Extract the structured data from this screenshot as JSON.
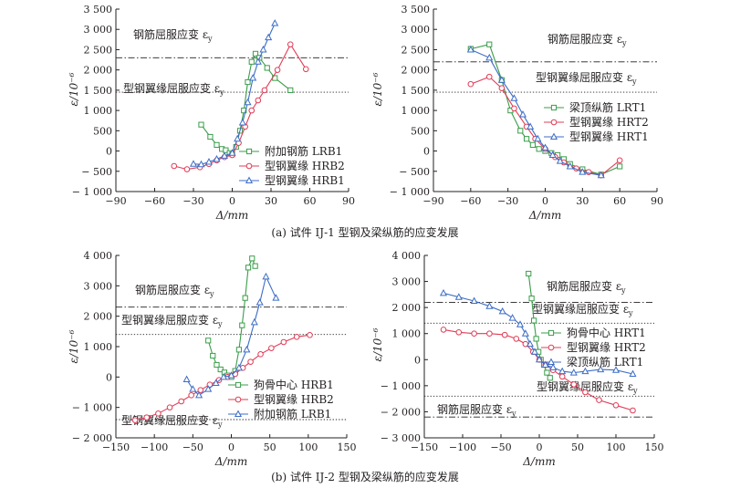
{
  "colors": {
    "green": "#3a9d4a",
    "red": "#e03c55",
    "blue": "#3c6dc6",
    "axis": "#231f20"
  },
  "captions": [
    "(a) 试件 IJ-1 型钢及梁纵筋的应变发展",
    "(b) 试件 IJ-2 型钢及梁纵筋的应变发展"
  ],
  "chart_data": [
    {
      "id": "a-left",
      "type": "line",
      "xlabel": "Δ/mm",
      "ylabel": "ε/10⁻⁶",
      "xlim": [
        -90,
        90
      ],
      "ylim": [
        -1000,
        3500
      ],
      "xticks": [
        -90,
        -60,
        -30,
        0,
        30,
        60,
        90
      ],
      "yticks": [
        -1000,
        -500,
        0,
        500,
        1000,
        1500,
        2000,
        2500,
        3000,
        3500
      ],
      "xtick_labels": [
        "−90",
        "−60",
        "−30",
        "0",
        "30",
        "60",
        "90"
      ],
      "ytick_labels": [
        "− 1 000",
        "− 500",
        "0",
        "500",
        "1 000",
        "1 500",
        "2 000",
        "2 500",
        "3 000",
        "3 500"
      ],
      "legend": "lower-right",
      "reference_lines": [
        {
          "y": 2300,
          "style": "dashdot",
          "label": "钢筋屈服应变 ε",
          "sub": "y"
        },
        {
          "y": 1450,
          "style": "dotted",
          "label": "型钢翼缘屈服应变 ε",
          "sub": "y"
        }
      ],
      "series": [
        {
          "name": "附加钢筋 LRB1",
          "color": "green",
          "marker": "square",
          "points": [
            [
              -24,
              650
            ],
            [
              -17,
              350
            ],
            [
              -12,
              150
            ],
            [
              -8,
              50
            ],
            [
              -5,
              20
            ],
            [
              -2,
              -50
            ],
            [
              0,
              -80
            ],
            [
              3,
              100
            ],
            [
              6,
              500
            ],
            [
              9,
              1000
            ],
            [
              12,
              1700
            ],
            [
              15,
              2200
            ],
            [
              18,
              2400
            ],
            [
              21,
              2300
            ],
            [
              27,
              2050
            ],
            [
              33,
              1800
            ],
            [
              45,
              1500
            ]
          ]
        },
        {
          "name": "型钢翼缘 HRB2",
          "color": "red",
          "marker": "circle",
          "points": [
            [
              -45,
              -370
            ],
            [
              -35,
              -450
            ],
            [
              -25,
              -400
            ],
            [
              -18,
              -320
            ],
            [
              -12,
              -230
            ],
            [
              -6,
              -150
            ],
            [
              0,
              -100
            ],
            [
              5,
              200
            ],
            [
              10,
              600
            ],
            [
              15,
              1000
            ],
            [
              20,
              1250
            ],
            [
              25,
              1500
            ],
            [
              35,
              2000
            ],
            [
              45,
              2630
            ],
            [
              57,
              2020
            ]
          ]
        },
        {
          "name": "型钢翼缘 HRB1",
          "color": "blue",
          "marker": "triangle",
          "points": [
            [
              -30,
              -320
            ],
            [
              -24,
              -330
            ],
            [
              -18,
              -270
            ],
            [
              -12,
              -200
            ],
            [
              -6,
              -120
            ],
            [
              0,
              -50
            ],
            [
              4,
              300
            ],
            [
              8,
              700
            ],
            [
              12,
              1200
            ],
            [
              16,
              1800
            ],
            [
              20,
              2200
            ],
            [
              24,
              2500
            ],
            [
              28,
              2800
            ],
            [
              33,
              3150
            ]
          ]
        }
      ]
    },
    {
      "id": "a-right",
      "type": "line",
      "xlabel": "Δ/mm",
      "ylabel": "ε/10⁻⁶",
      "xlim": [
        -90,
        90
      ],
      "ylim": [
        -1000,
        3500
      ],
      "xticks": [
        -90,
        -60,
        -30,
        0,
        30,
        60,
        90
      ],
      "yticks": [
        -1000,
        -500,
        0,
        500,
        1000,
        1500,
        2000,
        2500,
        3000,
        3500
      ],
      "xtick_labels": [
        "−90",
        "−60",
        "−30",
        "0",
        "30",
        "60",
        "90"
      ],
      "ytick_labels": [
        "− 1 000",
        "− 500",
        "0",
        "500",
        "1 000",
        "1 500",
        "2 000",
        "2 500",
        "3 000",
        "3 500"
      ],
      "legend": "center-right",
      "reference_lines": [
        {
          "y": 2200,
          "style": "dashdot",
          "label": "钢筋屈服应变 ε",
          "sub": "y"
        },
        {
          "y": 1450,
          "style": "dotted",
          "label": "型钢翼缘屈服应变 ε",
          "sub": "y"
        }
      ],
      "series": [
        {
          "name": "梁顶纵筋 LRT1",
          "color": "green",
          "marker": "square",
          "points": [
            [
              -60,
              2520
            ],
            [
              -45,
              2630
            ],
            [
              -35,
              1750
            ],
            [
              -28,
              1000
            ],
            [
              -20,
              500
            ],
            [
              -15,
              300
            ],
            [
              -10,
              150
            ],
            [
              -5,
              50
            ],
            [
              0,
              0
            ],
            [
              5,
              -50
            ],
            [
              10,
              -100
            ],
            [
              15,
              -200
            ],
            [
              20,
              -320
            ],
            [
              30,
              -450
            ],
            [
              45,
              -580
            ],
            [
              60,
              -380
            ]
          ]
        },
        {
          "name": "型钢翼缘 HRT2",
          "color": "red",
          "marker": "circle",
          "points": [
            [
              -60,
              1650
            ],
            [
              -45,
              1830
            ],
            [
              -35,
              1550
            ],
            [
              -25,
              1050
            ],
            [
              -15,
              600
            ],
            [
              -8,
              300
            ],
            [
              0,
              50
            ],
            [
              8,
              -150
            ],
            [
              15,
              -280
            ],
            [
              25,
              -430
            ],
            [
              35,
              -520
            ],
            [
              45,
              -600
            ],
            [
              60,
              -230
            ]
          ]
        },
        {
          "name": "型钢翼缘 HRT1",
          "color": "blue",
          "marker": "triangle",
          "points": [
            [
              -60,
              2500
            ],
            [
              -45,
              2300
            ],
            [
              -35,
              1750
            ],
            [
              -25,
              1300
            ],
            [
              -18,
              900
            ],
            [
              -12,
              600
            ],
            [
              -6,
              300
            ],
            [
              0,
              80
            ],
            [
              6,
              -100
            ],
            [
              12,
              -250
            ],
            [
              20,
              -380
            ],
            [
              30,
              -520
            ],
            [
              45,
              -600
            ]
          ]
        }
      ]
    },
    {
      "id": "b-left",
      "type": "line",
      "xlabel": "Δ/mm",
      "ylabel": "ε/10⁻⁶",
      "xlim": [
        -150,
        150
      ],
      "ylim": [
        -2000,
        4000
      ],
      "xticks": [
        -150,
        -100,
        -50,
        0,
        50,
        100,
        150
      ],
      "yticks": [
        -2000,
        -1000,
        0,
        1000,
        2000,
        3000,
        4000
      ],
      "xtick_labels": [
        "−150",
        "−100",
        "−50",
        "0",
        "50",
        "100",
        "150"
      ],
      "ytick_labels": [
        "− 2 000",
        "− 1 000",
        "0",
        "1 000",
        "2 000",
        "3 000",
        "4 000"
      ],
      "legend": "lower-right",
      "reference_lines": [
        {
          "y": 2300,
          "style": "dashdot",
          "label": "钢筋屈服应变 ε",
          "sub": "y"
        },
        {
          "y": 1400,
          "style": "dotted",
          "label": "型钢翼缘屈服应变 ε",
          "sub": "y"
        },
        {
          "y": -1400,
          "style": "dotted",
          "label": "型钢翼缘屈服应变 ε",
          "sub": "y"
        }
      ],
      "series": [
        {
          "name": "狗骨中心 HRB1",
          "color": "green",
          "marker": "square",
          "points": [
            [
              -30,
              1200
            ],
            [
              -24,
              700
            ],
            [
              -19,
              400
            ],
            [
              -14,
              250
            ],
            [
              -9,
              150
            ],
            [
              -5,
              50
            ],
            [
              0,
              0
            ],
            [
              5,
              200
            ],
            [
              10,
              900
            ],
            [
              14,
              1700
            ],
            [
              18,
              2600
            ],
            [
              22,
              3600
            ],
            [
              27,
              3900
            ],
            [
              31,
              3650
            ]
          ]
        },
        {
          "name": "型钢翼缘 HRB2",
          "color": "red",
          "marker": "circle",
          "points": [
            [
              -125,
              -1420
            ],
            [
              -110,
              -1330
            ],
            [
              -95,
              -1200
            ],
            [
              -80,
              -1000
            ],
            [
              -65,
              -800
            ],
            [
              -52,
              -600
            ],
            [
              -40,
              -430
            ],
            [
              -28,
              -250
            ],
            [
              -16,
              -100
            ],
            [
              -5,
              0
            ],
            [
              5,
              100
            ],
            [
              15,
              300
            ],
            [
              25,
              500
            ],
            [
              38,
              750
            ],
            [
              52,
              950
            ],
            [
              68,
              1150
            ],
            [
              85,
              1320
            ],
            [
              102,
              1380
            ]
          ]
        },
        {
          "name": "附加钢筋 LRB1",
          "color": "blue",
          "marker": "triangle",
          "points": [
            [
              -58,
              -80
            ],
            [
              -50,
              -400
            ],
            [
              -42,
              -600
            ],
            [
              -30,
              -400
            ],
            [
              -20,
              -200
            ],
            [
              -10,
              0
            ],
            [
              0,
              50
            ],
            [
              10,
              300
            ],
            [
              20,
              900
            ],
            [
              30,
              1800
            ],
            [
              37,
              2450
            ],
            [
              45,
              3300
            ],
            [
              58,
              2600
            ]
          ]
        }
      ]
    },
    {
      "id": "b-right",
      "type": "line",
      "xlabel": "Δ/mm",
      "ylabel": "ε/10⁻⁶",
      "xlim": [
        -150,
        150
      ],
      "ylim": [
        -3000,
        4000
      ],
      "xticks": [
        -150,
        -100,
        -50,
        0,
        50,
        100,
        150
      ],
      "yticks": [
        -3000,
        -2000,
        -1000,
        0,
        1000,
        2000,
        3000,
        4000
      ],
      "xtick_labels": [
        "−150",
        "−100",
        "−50",
        "0",
        "50",
        "100",
        "150"
      ],
      "ytick_labels": [
        "− 3 000",
        "− 2 000",
        "− 1 000",
        "0",
        "1 000",
        "2 000",
        "3 000",
        "4 000"
      ],
      "legend": "center-right",
      "reference_lines": [
        {
          "y": 2200,
          "style": "dashdot",
          "label": "钢筋屈服应变 ε",
          "sub": "y"
        },
        {
          "y": 1400,
          "style": "dotted",
          "label": "型钢翼缘屈服应变 ε",
          "sub": "y"
        },
        {
          "y": -1400,
          "style": "dotted",
          "label": "型钢翼缘屈服应变 ε",
          "sub": "y"
        },
        {
          "y": -2200,
          "style": "dashdot",
          "label": "钢筋屈服应变 ε",
          "sub": "y"
        }
      ],
      "series": [
        {
          "name": "狗骨中心 HRT1",
          "color": "green",
          "marker": "square",
          "points": [
            [
              -14,
              3300
            ],
            [
              -10,
              2350
            ],
            [
              -7,
              1500
            ],
            [
              -4,
              800
            ],
            [
              -1,
              300
            ],
            [
              2,
              0
            ],
            [
              6,
              -200
            ],
            [
              10,
              -500
            ],
            [
              14,
              -700
            ]
          ]
        },
        {
          "name": "型钢翼缘 HRT2",
          "color": "red",
          "marker": "circle",
          "points": [
            [
              -125,
              1150
            ],
            [
              -105,
              1050
            ],
            [
              -85,
              1000
            ],
            [
              -65,
              1000
            ],
            [
              -45,
              950
            ],
            [
              -30,
              800
            ],
            [
              -18,
              600
            ],
            [
              -8,
              300
            ],
            [
              0,
              0
            ],
            [
              8,
              -200
            ],
            [
              18,
              -400
            ],
            [
              30,
              -650
            ],
            [
              45,
              -950
            ],
            [
              60,
              -1250
            ],
            [
              78,
              -1550
            ],
            [
              100,
              -1750
            ],
            [
              122,
              -1950
            ]
          ]
        },
        {
          "name": "梁顶纵筋 LRT1",
          "color": "blue",
          "marker": "triangle",
          "points": [
            [
              -125,
              2550
            ],
            [
              -105,
              2400
            ],
            [
              -85,
              2250
            ],
            [
              -65,
              2050
            ],
            [
              -48,
              1850
            ],
            [
              -35,
              1600
            ],
            [
              -25,
              1350
            ],
            [
              -18,
              1000
            ],
            [
              -12,
              600
            ],
            [
              -6,
              300
            ],
            [
              0,
              0
            ],
            [
              8,
              -200
            ],
            [
              18,
              -300
            ],
            [
              30,
              -450
            ],
            [
              45,
              -500
            ],
            [
              60,
              -450
            ],
            [
              80,
              -380
            ],
            [
              100,
              -400
            ],
            [
              122,
              -550
            ]
          ]
        }
      ]
    }
  ]
}
